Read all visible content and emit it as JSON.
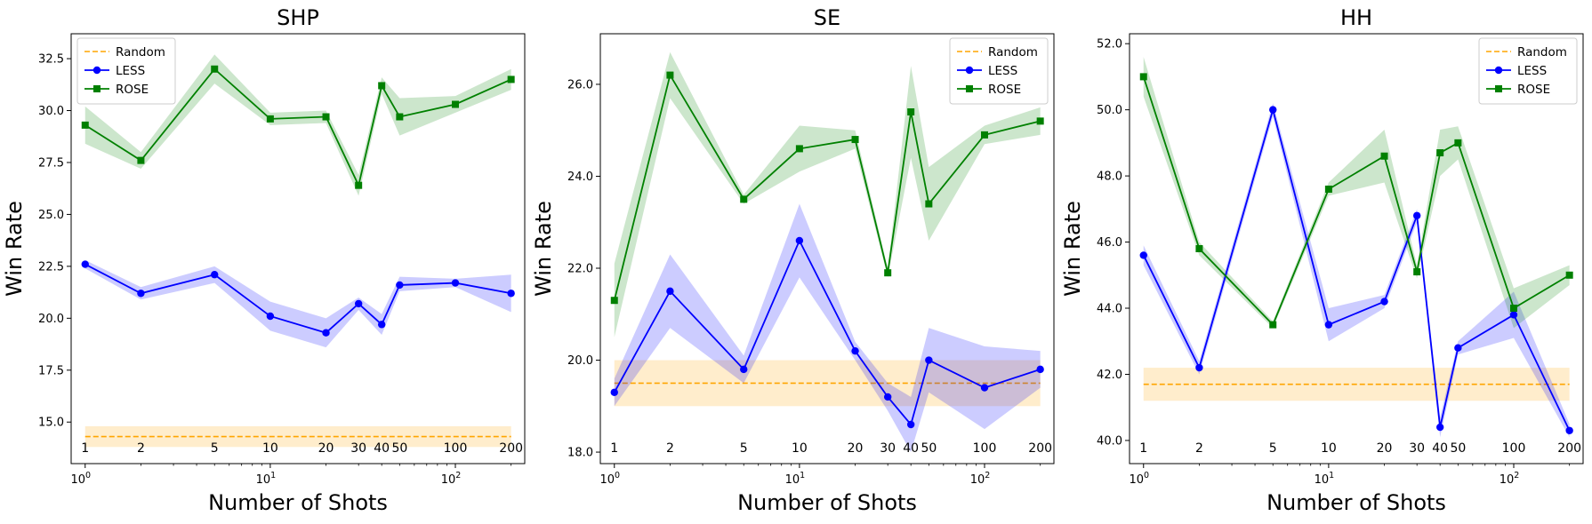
{
  "chart_data": [
    {
      "type": "line",
      "title": "SHP",
      "xlabel": "Number of Shots",
      "ylabel": "Win Rate",
      "xscale": "log",
      "x": [
        1,
        2,
        5,
        10,
        20,
        30,
        40,
        50,
        100,
        200
      ],
      "x_annotations": [
        "1",
        "2",
        "5",
        "10",
        "20",
        "30",
        "40",
        "50",
        "100",
        "200"
      ],
      "xticks": [
        "10^0",
        "10^1",
        "10^2"
      ],
      "ylim": [
        13.0,
        33.7
      ],
      "yticks": [
        15.0,
        17.5,
        20.0,
        22.5,
        25.0,
        27.5,
        30.0,
        32.5
      ],
      "ytick_labels": [
        "15.0",
        "17.5",
        "20.0",
        "22.5",
        "25.0",
        "27.5",
        "30.0",
        "32.5"
      ],
      "legend_position": "upper-left",
      "random": {
        "name": "Random",
        "value": 14.3,
        "band": [
          13.8,
          14.8
        ],
        "color": "#ffa500"
      },
      "series": [
        {
          "name": "LESS",
          "marker": "circle",
          "color": "#0000ff",
          "values": [
            22.6,
            21.2,
            22.1,
            20.1,
            19.3,
            20.7,
            19.7,
            21.6,
            21.7,
            21.2
          ],
          "lower": [
            22.4,
            20.9,
            21.7,
            19.4,
            18.6,
            20.4,
            19.2,
            21.3,
            21.5,
            20.3
          ],
          "upper": [
            22.8,
            21.5,
            22.5,
            20.8,
            20.0,
            21.0,
            20.2,
            22.0,
            21.9,
            22.1
          ]
        },
        {
          "name": "ROSE",
          "marker": "square",
          "color": "#008000",
          "values": [
            29.3,
            27.6,
            32.0,
            29.6,
            29.7,
            26.4,
            31.2,
            29.7,
            30.3,
            31.5
          ],
          "lower": [
            28.4,
            27.2,
            31.3,
            29.3,
            29.4,
            25.9,
            30.8,
            28.8,
            29.9,
            31.0
          ],
          "upper": [
            30.2,
            28.0,
            32.7,
            29.9,
            30.0,
            26.9,
            31.6,
            30.6,
            30.7,
            32.0
          ]
        }
      ]
    },
    {
      "type": "line",
      "title": "SE",
      "xlabel": "Number of Shots",
      "ylabel": "Win Rate",
      "xscale": "log",
      "x": [
        1,
        2,
        5,
        10,
        20,
        30,
        40,
        50,
        100,
        200
      ],
      "x_annotations": [
        "1",
        "2",
        "5",
        "10",
        "20",
        "30",
        "40",
        "50",
        "100",
        "200"
      ],
      "xticks": [
        "10^0",
        "10^1",
        "10^2"
      ],
      "ylim": [
        17.75,
        27.1
      ],
      "yticks": [
        18.0,
        20.0,
        22.0,
        24.0,
        26.0
      ],
      "ytick_labels": [
        "18.0",
        "20.0",
        "22.0",
        "24.0",
        "26.0"
      ],
      "legend_position": "upper-right",
      "random": {
        "name": "Random",
        "value": 19.5,
        "band": [
          19.0,
          20.0
        ],
        "color": "#ffa500"
      },
      "series": [
        {
          "name": "LESS",
          "marker": "circle",
          "color": "#0000ff",
          "values": [
            19.3,
            21.5,
            19.8,
            22.6,
            20.2,
            19.2,
            18.6,
            20.0,
            19.4,
            19.8
          ],
          "lower": [
            19.0,
            20.7,
            19.5,
            21.8,
            20.0,
            18.9,
            18.0,
            19.3,
            18.5,
            19.4
          ],
          "upper": [
            19.6,
            22.3,
            20.1,
            23.4,
            20.4,
            19.5,
            19.2,
            20.7,
            20.3,
            20.2
          ]
        },
        {
          "name": "ROSE",
          "marker": "square",
          "color": "#008000",
          "values": [
            21.3,
            26.2,
            23.5,
            24.6,
            24.8,
            21.9,
            25.4,
            23.4,
            24.9,
            25.2
          ],
          "lower": [
            20.5,
            25.7,
            23.4,
            24.1,
            24.6,
            21.8,
            24.4,
            22.6,
            24.7,
            24.9
          ],
          "upper": [
            22.1,
            26.7,
            23.6,
            25.1,
            25.0,
            22.0,
            26.4,
            24.2,
            25.1,
            25.5
          ]
        }
      ]
    },
    {
      "type": "line",
      "title": "HH",
      "xlabel": "Number of Shots",
      "ylabel": "Win Rate",
      "xscale": "log",
      "x": [
        1,
        2,
        5,
        10,
        20,
        30,
        40,
        50,
        100,
        200
      ],
      "x_annotations": [
        "1",
        "2",
        "5",
        "10",
        "20",
        "30",
        "40",
        "50",
        "100",
        "200"
      ],
      "xticks": [
        "10^0",
        "10^1",
        "10^2"
      ],
      "ylim": [
        39.3,
        52.3
      ],
      "yticks": [
        40.0,
        42.0,
        44.0,
        46.0,
        48.0,
        50.0,
        52.0
      ],
      "ytick_labels": [
        "40.0",
        "42.0",
        "44.0",
        "46.0",
        "48.0",
        "50.0",
        "52.0"
      ],
      "legend_position": "upper-right",
      "random": {
        "name": "Random",
        "value": 41.7,
        "band": [
          41.2,
          42.2
        ],
        "color": "#ffa500"
      },
      "series": [
        {
          "name": "LESS",
          "marker": "circle",
          "color": "#0000ff",
          "values": [
            45.6,
            42.2,
            50.0,
            43.5,
            44.2,
            46.8,
            40.4,
            42.8,
            43.8,
            40.3
          ],
          "lower": [
            45.3,
            42.0,
            49.8,
            43.0,
            44.0,
            46.6,
            40.1,
            42.6,
            43.1,
            40.1
          ],
          "upper": [
            45.9,
            42.4,
            50.2,
            44.0,
            44.4,
            47.0,
            40.7,
            43.0,
            44.5,
            40.5
          ]
        },
        {
          "name": "ROSE",
          "marker": "square",
          "color": "#008000",
          "values": [
            51.0,
            45.8,
            43.5,
            47.6,
            48.6,
            45.1,
            48.7,
            49.0,
            44.0,
            45.0
          ],
          "lower": [
            50.4,
            45.6,
            43.4,
            47.4,
            47.8,
            44.9,
            48.0,
            48.5,
            43.4,
            44.7
          ],
          "upper": [
            51.6,
            46.0,
            43.6,
            47.8,
            49.4,
            45.3,
            49.4,
            49.5,
            44.6,
            45.3
          ]
        }
      ]
    }
  ]
}
